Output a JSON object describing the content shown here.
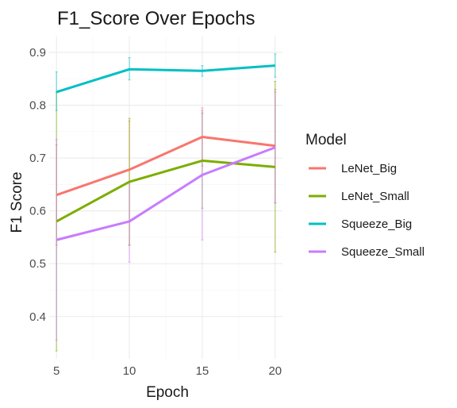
{
  "chart_data": {
    "type": "line",
    "title": "F1_Score Over Epochs",
    "xlabel": "Epoch",
    "ylabel": "F1 Score",
    "x": [
      5,
      10,
      15,
      20
    ],
    "x_ticks": [
      "5",
      "10",
      "15",
      "20"
    ],
    "y_ticks": [
      "0.4",
      "0.5",
      "0.6",
      "0.7",
      "0.8",
      "0.9"
    ],
    "xlim": [
      4.5,
      20.5
    ],
    "ylim": [
      0.32,
      0.93
    ],
    "grid": true,
    "legend": {
      "title": "Model",
      "position": "right"
    },
    "series": [
      {
        "name": "LeNet_Big",
        "color": "#F8766D",
        "values": [
          0.63,
          0.678,
          0.74,
          0.723
        ],
        "lower": [
          0.535,
          0.535,
          0.685,
          0.615
        ],
        "upper": [
          0.725,
          0.77,
          0.795,
          0.83
        ]
      },
      {
        "name": "LeNet_Small",
        "color": "#7CAE00",
        "values": [
          0.58,
          0.655,
          0.695,
          0.683
        ],
        "lower": [
          0.335,
          0.535,
          0.605,
          0.522
        ],
        "upper": [
          0.825,
          0.775,
          0.785,
          0.845
        ]
      },
      {
        "name": "Squeeze_Big",
        "color": "#00BFC4",
        "values": [
          0.825,
          0.868,
          0.865,
          0.875
        ],
        "lower": [
          0.79,
          0.848,
          0.855,
          0.853
        ],
        "upper": [
          0.863,
          0.89,
          0.875,
          0.897
        ]
      },
      {
        "name": "Squeeze_Small",
        "color": "#C77CFF",
        "values": [
          0.545,
          0.58,
          0.668,
          0.72
        ],
        "lower": [
          0.355,
          0.503,
          0.545,
          0.615
        ],
        "upper": [
          0.735,
          0.655,
          0.79,
          0.825
        ]
      }
    ]
  }
}
